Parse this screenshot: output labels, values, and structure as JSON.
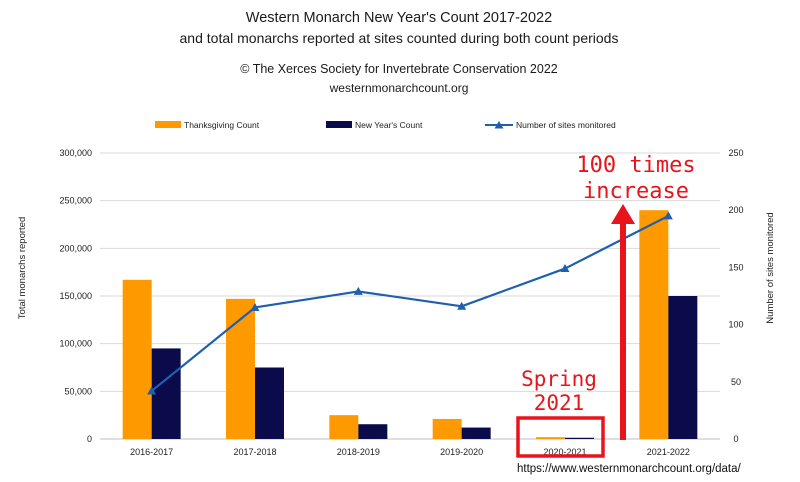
{
  "chart_data": {
    "type": "bar",
    "title": "Western Monarch New Year's Count 2017-2022",
    "subtitle": "and total monarchs reported at sites counted during both count periods",
    "credit": "© The Xerces Society for Invertebrate Conservation 2022",
    "website": "westernmonarchcount.org",
    "categories": [
      "2016-2017",
      "2017-2018",
      "2018-2019",
      "2019-2020",
      "2020-2021",
      "2021-2022"
    ],
    "series": [
      {
        "name": "Thanksgiving Count",
        "type": "bar",
        "axis": "left",
        "color": "#ff9900",
        "values": [
          167000,
          147000,
          25000,
          21000,
          1900,
          240000
        ]
      },
      {
        "name": "New Year's Count",
        "type": "bar",
        "axis": "left",
        "color": "#0b0a4a",
        "values": [
          95000,
          75000,
          15500,
          12000,
          1300,
          150000
        ]
      },
      {
        "name": "Number of sites monitored",
        "type": "line",
        "axis": "right",
        "color": "#1f5fb0",
        "values": [
          42,
          115,
          129,
          116,
          149,
          195
        ]
      }
    ],
    "ylabel": "Total monarchs reported",
    "y2label": "Number of sites monitored",
    "ylim": [
      0,
      300000
    ],
    "y2lim": [
      0,
      250
    ],
    "yticks": [
      "0",
      "50,000",
      "100,000",
      "150,000",
      "200,000",
      "250,000",
      "300,000"
    ],
    "y2ticks": [
      "0",
      "50",
      "100",
      "150",
      "200",
      "250"
    ],
    "grid": true,
    "legend": "top",
    "annotations": {
      "increase_line1": "100 times",
      "increase_line2": "increase",
      "spring_line1": "Spring",
      "spring_line2": "2021",
      "highlight_category": "2020-2021"
    },
    "source_url": "https://www.westernmonarchcount.org/data/",
    "colors": {
      "annotation": "#e8141b"
    }
  }
}
